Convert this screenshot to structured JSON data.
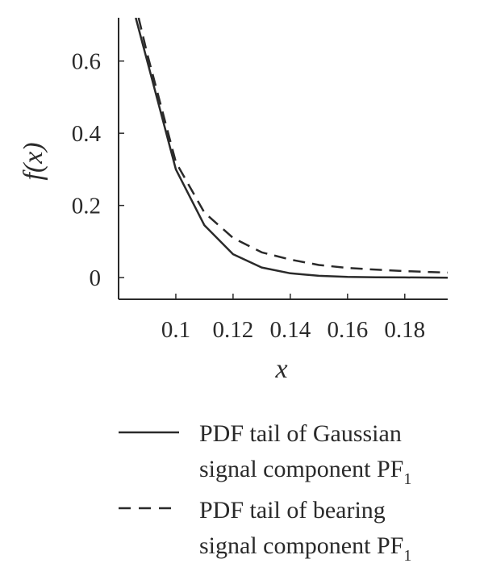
{
  "chart_data": {
    "type": "line",
    "title": "",
    "xlabel": "x",
    "ylabel": "f(x)",
    "xlim": [
      0.08,
      0.195
    ],
    "ylim": [
      -0.06,
      0.72
    ],
    "xticks": [
      0.1,
      0.12,
      0.14,
      0.16,
      0.18
    ],
    "xtick_labels": [
      "0.1",
      "0.12",
      "0.14",
      "0.16",
      "0.18"
    ],
    "yticks": [
      0,
      0.2,
      0.4,
      0.6
    ],
    "ytick_labels": [
      "0",
      "0.2",
      "0.4",
      "0.6"
    ],
    "grid": false,
    "legend_position": "bottom",
    "series": [
      {
        "name": "PDF tail of Gaussian signal component PF1",
        "legend_lines": [
          "PDF tail of Gaussian",
          "signal component PF",
          "1"
        ],
        "style": "solid",
        "x": [
          0.086,
          0.09,
          0.1,
          0.11,
          0.12,
          0.13,
          0.14,
          0.15,
          0.16,
          0.17,
          0.18,
          0.195
        ],
        "y": [
          0.72,
          0.6,
          0.3,
          0.145,
          0.065,
          0.028,
          0.012,
          0.005,
          0.002,
          0.001,
          0.0005,
          0.0
        ]
      },
      {
        "name": "PDF tail of bearing signal component PF1",
        "legend_lines": [
          "PDF tail of bearing",
          "signal component PF",
          "1"
        ],
        "style": "dashed",
        "x": [
          0.087,
          0.09,
          0.1,
          0.11,
          0.12,
          0.13,
          0.14,
          0.15,
          0.16,
          0.17,
          0.18,
          0.195
        ],
        "y": [
          0.72,
          0.62,
          0.32,
          0.18,
          0.11,
          0.07,
          0.05,
          0.035,
          0.027,
          0.022,
          0.018,
          0.014
        ]
      }
    ]
  }
}
